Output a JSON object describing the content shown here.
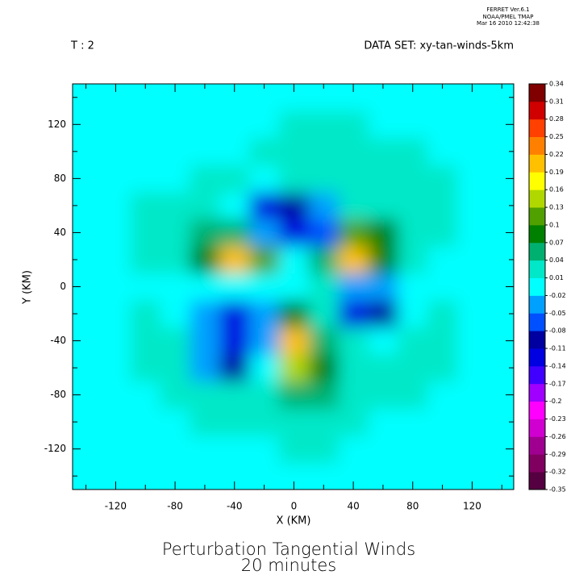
{
  "header": {
    "program": "FERRET Ver.6.1",
    "lab": "NOAA/PMEL TMAP",
    "timestamp": "Mar 16 2010 12:42:38"
  },
  "chart_data": {
    "type": "heatmap",
    "title": "Perturbation Tangential Winds",
    "subtitle": "20 minutes",
    "time_label": "T : 2",
    "dataset_label": "DATA SET: xy-tan-winds-5km",
    "x_label": "X (KM)",
    "y_label": "Y (KM)",
    "xlim": [
      -149,
      148
    ],
    "ylim": [
      -150,
      150
    ],
    "xticks": [
      -120,
      -80,
      -40,
      0,
      40,
      80,
      120
    ],
    "xticks_minor": [
      -140,
      -100,
      -60,
      -20,
      20,
      60,
      100,
      140
    ],
    "yticks": [
      -120,
      -80,
      -40,
      0,
      40,
      80,
      120
    ],
    "yticks_minor": [
      -140,
      -100,
      -60,
      -20,
      20,
      60,
      100,
      140
    ],
    "x": [
      -140,
      -120,
      -100,
      -80,
      -60,
      -40,
      -20,
      0,
      20,
      40,
      60,
      80,
      100,
      120,
      140
    ],
    "y": [
      -140,
      -120,
      -100,
      -80,
      -60,
      -40,
      -20,
      0,
      20,
      40,
      60,
      80,
      100,
      120,
      140
    ],
    "z": [
      [
        0,
        0,
        0,
        0,
        0,
        0,
        0,
        0,
        0,
        0,
        0,
        0,
        0,
        0,
        0
      ],
      [
        0,
        0,
        0,
        0,
        0,
        0,
        0,
        0.01,
        0.01,
        0,
        0,
        0,
        0,
        0,
        0
      ],
      [
        0,
        0,
        0,
        0,
        0.01,
        0.01,
        0.02,
        0.02,
        0.02,
        0.01,
        0,
        0,
        0,
        0,
        0
      ],
      [
        0,
        0,
        0,
        0.01,
        0.01,
        0.02,
        0.03,
        0.04,
        0.04,
        0.03,
        0.02,
        0.01,
        0,
        0,
        0
      ],
      [
        0,
        0,
        0.01,
        0.01,
        -0.03,
        -0.1,
        -0.02,
        0.13,
        0.08,
        0.03,
        0.03,
        0.02,
        0.01,
        0,
        0
      ],
      [
        0,
        0,
        0.01,
        0.01,
        -0.04,
        -0.13,
        -0.04,
        0.2,
        0.06,
        0.01,
        0,
        0.01,
        0.01,
        0,
        0
      ],
      [
        0,
        0,
        0.01,
        0,
        -0.04,
        -0.14,
        -0.05,
        0.08,
        0.02,
        -0.12,
        -0.1,
        -0.02,
        0.01,
        0,
        0
      ],
      [
        0,
        0,
        0,
        0,
        -0.01,
        -0.02,
        0,
        0,
        0.01,
        -0.03,
        -0.04,
        -0.01,
        0,
        0,
        0
      ],
      [
        0,
        0,
        0.01,
        0.02,
        0.08,
        0.21,
        0.1,
        -0.02,
        0.04,
        0.2,
        0.08,
        0.01,
        0,
        0,
        0
      ],
      [
        0,
        0,
        0.01,
        0.02,
        0.04,
        0.06,
        -0.03,
        -0.13,
        -0.06,
        0.1,
        0.07,
        0.02,
        0.01,
        0,
        0
      ],
      [
        0,
        0,
        0.01,
        0.01,
        0.01,
        0,
        -0.12,
        -0.1,
        -0.03,
        0.01,
        0.02,
        0.03,
        0.02,
        0,
        0
      ],
      [
        0,
        0,
        0,
        0,
        0.01,
        0.01,
        0,
        0.01,
        0.02,
        0.03,
        0.03,
        0.02,
        0.01,
        0,
        0
      ],
      [
        0,
        0,
        0,
        0,
        0,
        0,
        0.01,
        0.01,
        0.02,
        0.02,
        0.02,
        0.01,
        0,
        0,
        0
      ],
      [
        0,
        0,
        0,
        0,
        0,
        0,
        0,
        0.01,
        0.01,
        0.01,
        0,
        0,
        0,
        0,
        0
      ],
      [
        0,
        0,
        0,
        0,
        0,
        0,
        0,
        0,
        0,
        0,
        0,
        0,
        0,
        0,
        0
      ]
    ],
    "colorbar": {
      "levels": [
        -0.35,
        -0.32,
        -0.29,
        -0.26,
        -0.23,
        -0.2,
        -0.17,
        -0.14,
        -0.11,
        -0.08,
        -0.05,
        -0.02,
        0.01,
        0.04,
        0.07,
        0.1,
        0.13,
        0.16,
        0.19,
        0.22,
        0.25,
        0.28,
        0.31,
        0.34
      ],
      "colors": [
        "#550040",
        "#800060",
        "#a00090",
        "#d000d0",
        "#ff00ff",
        "#a000ff",
        "#4000ff",
        "#0000e0",
        "#0000a0",
        "#0050ff",
        "#00a0ff",
        "#00ffff",
        "#00e8c8",
        "#00b070",
        "#008000",
        "#50a000",
        "#b0d800",
        "#ffff00",
        "#ffc000",
        "#ff8000",
        "#ff4000",
        "#d00000",
        "#800000"
      ]
    }
  }
}
